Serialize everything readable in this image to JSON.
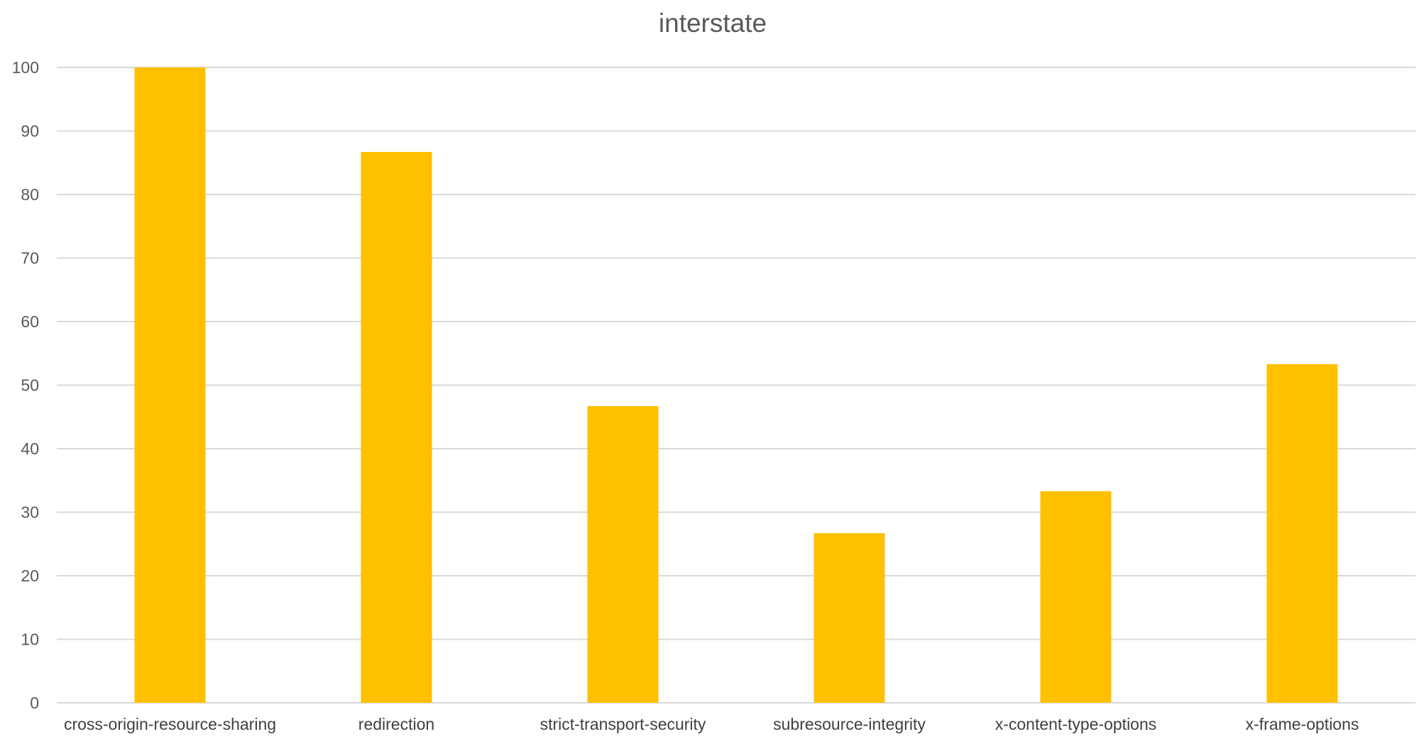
{
  "chart_data": {
    "type": "bar",
    "title": "interstate",
    "xlabel": "",
    "ylabel": "",
    "categories": [
      "cross-origin-resource-sharing",
      "redirection",
      "strict-transport-security",
      "subresource-integrity",
      "x-content-type-options",
      "x-frame-options"
    ],
    "values": [
      100,
      86.7,
      46.7,
      26.7,
      33.3,
      53.3
    ],
    "ylim": [
      0,
      100
    ],
    "yticks": [
      0,
      10,
      20,
      30,
      40,
      50,
      60,
      70,
      80,
      90,
      100
    ],
    "grid": true,
    "legend": "none",
    "colors": {
      "bar": "#FFC000",
      "grid": "#D9D9D9",
      "text": "#595959"
    }
  }
}
